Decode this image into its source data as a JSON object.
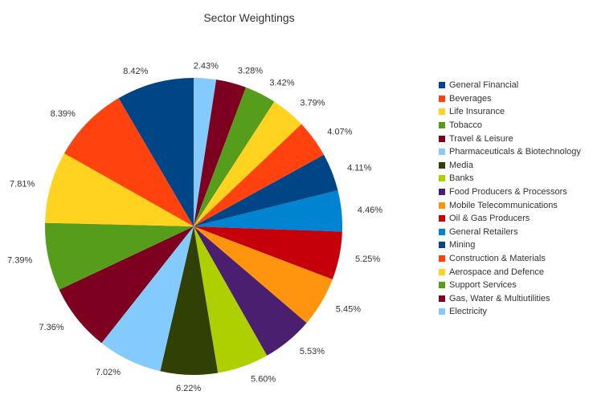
{
  "chart_data": {
    "type": "pie",
    "title": "Sector Weightings",
    "legend_position": "right",
    "start_angle": "top, clockwise from Electricity (reverse legend order)",
    "slices": [
      {
        "label": "General Financial",
        "value": 8.42,
        "display": "8.42%",
        "color": "#004586"
      },
      {
        "label": "Beverages",
        "value": 8.39,
        "display": "8.39%",
        "color": "#ff420e"
      },
      {
        "label": "Life Insurance",
        "value": 7.81,
        "display": "7.81%",
        "color": "#ffd320"
      },
      {
        "label": "Tobacco",
        "value": 7.39,
        "display": "7.39%",
        "color": "#579d1c"
      },
      {
        "label": "Travel & Leisure",
        "value": 7.36,
        "display": "7.36%",
        "color": "#7e0021"
      },
      {
        "label": "Pharmaceuticals & Biotechnology",
        "value": 7.02,
        "display": "7.02%",
        "color": "#83caff"
      },
      {
        "label": "Media",
        "value": 6.22,
        "display": "6.22%",
        "color": "#314004"
      },
      {
        "label": "Banks",
        "value": 5.6,
        "display": "5.60%",
        "color": "#aecf00"
      },
      {
        "label": "Food Producers & Processors",
        "value": 5.53,
        "display": "5.53%",
        "color": "#4b1f6f"
      },
      {
        "label": "Mobile Telecommunications",
        "value": 5.45,
        "display": "5.45%",
        "color": "#ff950e"
      },
      {
        "label": "Oil & Gas Producers",
        "value": 5.25,
        "display": "5.25%",
        "color": "#c5000b"
      },
      {
        "label": "General Retailers",
        "value": 4.46,
        "display": "4.46%",
        "color": "#0084d1"
      },
      {
        "label": "Mining",
        "value": 4.11,
        "display": "4.11%",
        "color": "#004586"
      },
      {
        "label": "Construction & Materials",
        "value": 4.07,
        "display": "4.07%",
        "color": "#ff420e"
      },
      {
        "label": "Aerospace and Defence",
        "value": 3.79,
        "display": "3.79%",
        "color": "#ffd320"
      },
      {
        "label": "Support Services",
        "value": 3.42,
        "display": "3.42%",
        "color": "#579d1c"
      },
      {
        "label": "Gas, Water & Multiutilities",
        "value": 3.28,
        "display": "3.28%",
        "color": "#7e0021"
      },
      {
        "label": "Electricity",
        "value": 2.43,
        "display": "2.43%",
        "color": "#83caff"
      }
    ]
  }
}
